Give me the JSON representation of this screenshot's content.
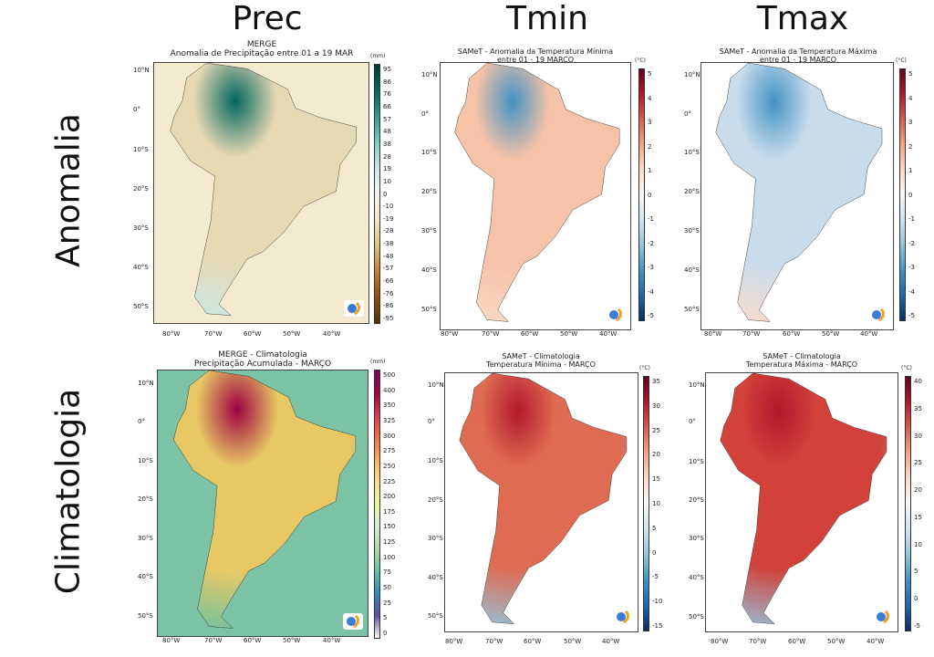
{
  "column_headers": [
    "Prec",
    "Tmin",
    "Tmax"
  ],
  "row_headers": [
    "Anomalia",
    "Climatologia"
  ],
  "lat_labels": [
    "10°N",
    "0°",
    "10°S",
    "20°S",
    "30°S",
    "40°S",
    "50°S"
  ],
  "lon_labels": [
    "80°W",
    "70°W",
    "60°W",
    "50°W",
    "40°W"
  ],
  "panels": [
    {
      "id": "prec-anomaly",
      "title": [
        "MERGE",
        "Anomalia de Precipitação entre 01 a 19 MAR"
      ],
      "unit": "(mm)",
      "ticks": [
        "95",
        "86",
        "76",
        "66",
        "57",
        "48",
        "38",
        "28",
        "19",
        "10",
        "0",
        "-10",
        "-19",
        "-28",
        "-38",
        "-48",
        "-57",
        "-66",
        "-76",
        "-86",
        "-95"
      ],
      "colormap": [
        "#003c30",
        "#01665e",
        "#35978f",
        "#80cdc1",
        "#c7eae5",
        "#f5f5f5",
        "#f6e8c3",
        "#dfc27d",
        "#bf812d",
        "#8c510a",
        "#543005"
      ],
      "land": "#e8d9b5",
      "ocean": "#f4ead0"
    },
    {
      "id": "tmin-anomaly",
      "title": [
        "SAMeT - Anomalia da Temperatura Mínima",
        "entre 01 - 19 MARÇO"
      ],
      "unit": "(°C)",
      "ticks": [
        "5",
        "4",
        "3",
        "2",
        "1",
        "0",
        "-1",
        "-2",
        "-3",
        "-4",
        "-5"
      ],
      "colormap": [
        "#67001f",
        "#b2182b",
        "#d6604d",
        "#f4a582",
        "#fddbc7",
        "#f7f7f7",
        "#d1e5f0",
        "#92c5de",
        "#4393c3",
        "#2166ac",
        "#053061"
      ],
      "land": "#f6c2a8",
      "ocean": "#ffffff"
    },
    {
      "id": "tmax-anomaly",
      "title": [
        "SAMeT - Anomalia da Temperatura Máxima",
        "entre 01 - 19 MARÇO"
      ],
      "unit": "(°C)",
      "ticks": [
        "5",
        "4",
        "3",
        "2",
        "1",
        "0",
        "-1",
        "-2",
        "-3",
        "-4",
        "-5"
      ],
      "colormap": [
        "#67001f",
        "#b2182b",
        "#d6604d",
        "#f4a582",
        "#fddbc7",
        "#f7f7f7",
        "#d1e5f0",
        "#92c5de",
        "#4393c3",
        "#2166ac",
        "#053061"
      ],
      "land": "#c9dcec",
      "ocean": "#ffffff"
    },
    {
      "id": "prec-climatology",
      "title": [
        "MERGE - Climatologia",
        "Precipitação Acumulada - MARÇO"
      ],
      "unit": "(mm)",
      "ticks": [
        "500",
        "400",
        "350",
        "325",
        "300",
        "275",
        "250",
        "225",
        "200",
        "175",
        "150",
        "125",
        "100",
        "75",
        "50",
        "25",
        "5",
        "0"
      ],
      "colormap": [
        "#7b0060",
        "#9e0142",
        "#d53e4f",
        "#f46d43",
        "#fdae61",
        "#fee08b",
        "#e6f598",
        "#d8ecd8",
        "#abdda4",
        "#66c2a5",
        "#3288bd",
        "#5e4fa2",
        "#ffffff"
      ],
      "land": "#e8c864",
      "ocean": "#7cc3a6"
    },
    {
      "id": "tmin-climatology",
      "title": [
        "SAMeT - Climatologia",
        "Temperatura Mínima - MARÇO"
      ],
      "unit": "(°C)",
      "ticks": [
        "35",
        "30",
        "25",
        "20",
        "15",
        "10",
        "5",
        "0",
        "-5",
        "-10",
        "-15"
      ],
      "colormap": [
        "#67001f",
        "#b2182b",
        "#d6604d",
        "#f4a582",
        "#fddbc7",
        "#f7f7f7",
        "#d1e5f0",
        "#92c5de",
        "#4393c3",
        "#2166ac",
        "#053061"
      ],
      "land": "#df6b52",
      "ocean": "#ffffff"
    },
    {
      "id": "tmax-climatology",
      "title": [
        "SAMeT - Climatologia",
        "Temperatura Máxima - MARÇO"
      ],
      "unit": "(°C)",
      "ticks": [
        "40",
        "35",
        "30",
        "25",
        "20",
        "15",
        "10",
        "5",
        "0",
        "-5"
      ],
      "colormap": [
        "#67001f",
        "#b2182b",
        "#d6604d",
        "#f4a582",
        "#fddbc7",
        "#f7f7f7",
        "#d1e5f0",
        "#92c5de",
        "#4393c3",
        "#2166ac",
        "#053061"
      ],
      "land": "#d2423a",
      "ocean": "#ffffff"
    }
  ]
}
